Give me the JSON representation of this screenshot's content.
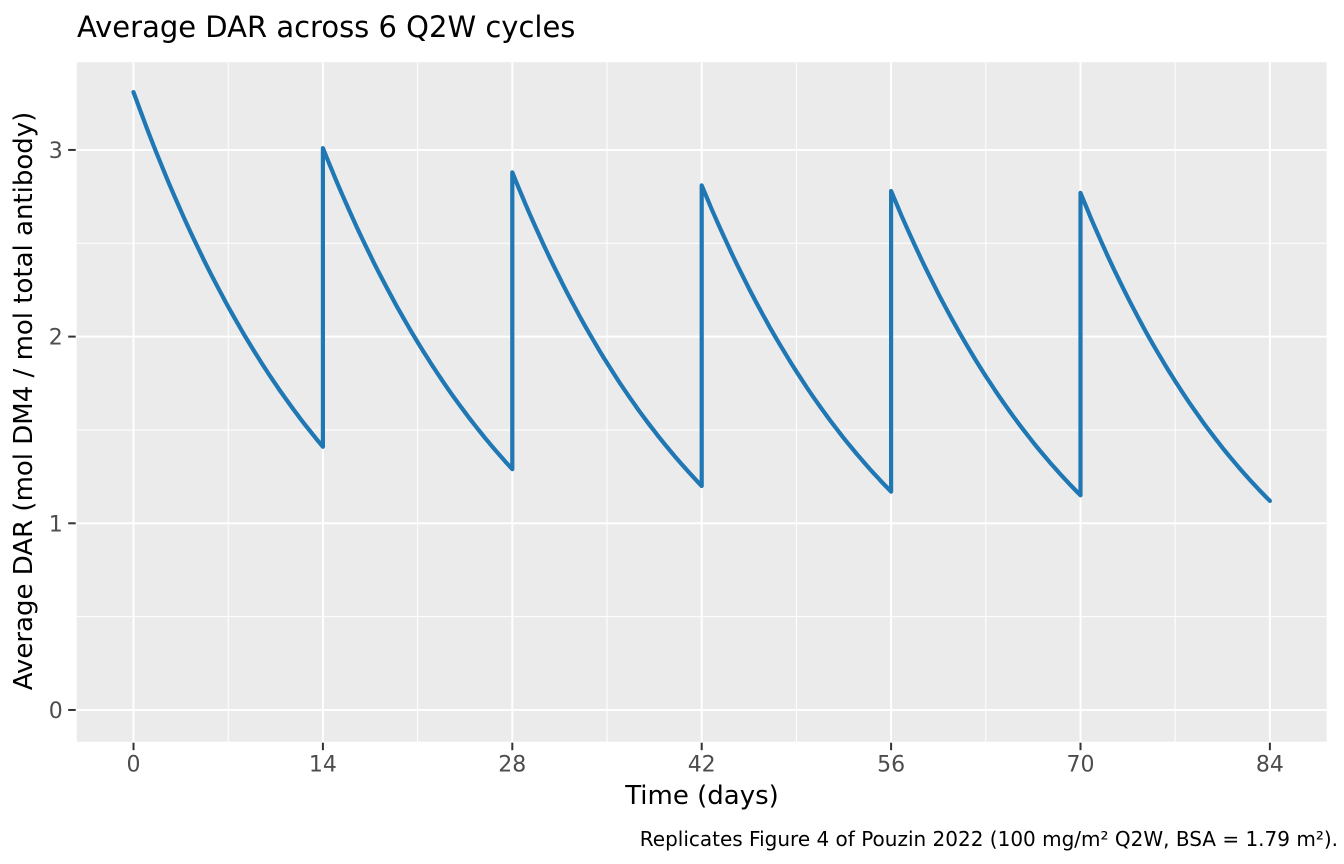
{
  "chart_data": {
    "type": "line",
    "title": "Average DAR across 6 Q2W cycles",
    "xlabel": "Time (days)",
    "ylabel": "Average DAR (mol DM4 / mol total antibody)",
    "caption": "Replicates Figure 4 of Pouzin 2022 (100 mg/m² Q2W, BSA = 1.79 m²).",
    "x_ticks": [
      0,
      14,
      28,
      42,
      56,
      70,
      84
    ],
    "x_minor_ticks": [
      7,
      21,
      35,
      49,
      63,
      77
    ],
    "y_ticks": [
      0,
      1,
      2,
      3
    ],
    "y_minor_ticks": [
      0.5,
      1.5,
      2.5
    ],
    "xlim": [
      -4.2,
      88.2
    ],
    "ylim": [
      -0.17,
      3.47
    ],
    "grid": "major-and-minor",
    "legend": "none",
    "panel_bg": "#ebebeb",
    "grid_color": "#ffffff",
    "tick_color": "#333333",
    "tick_label_color": "#4d4d4d",
    "line_color": "#1f77b4",
    "series": [
      {
        "name": "Average DAR",
        "description": "Sawtooth profile: exponential decay between doses with an instantaneous rise at each Q2W dose",
        "n_cycles": 6,
        "dose_interval_days": 14,
        "dose_times": [
          0,
          14,
          28,
          42,
          56,
          70
        ],
        "peaks": [
          3.31,
          3.01,
          2.88,
          2.81,
          2.78,
          2.77
        ],
        "troughs": [
          1.41,
          1.29,
          1.2,
          1.17,
          1.15,
          1.12
        ],
        "end_time": 84,
        "end_value": 1.12
      }
    ]
  }
}
